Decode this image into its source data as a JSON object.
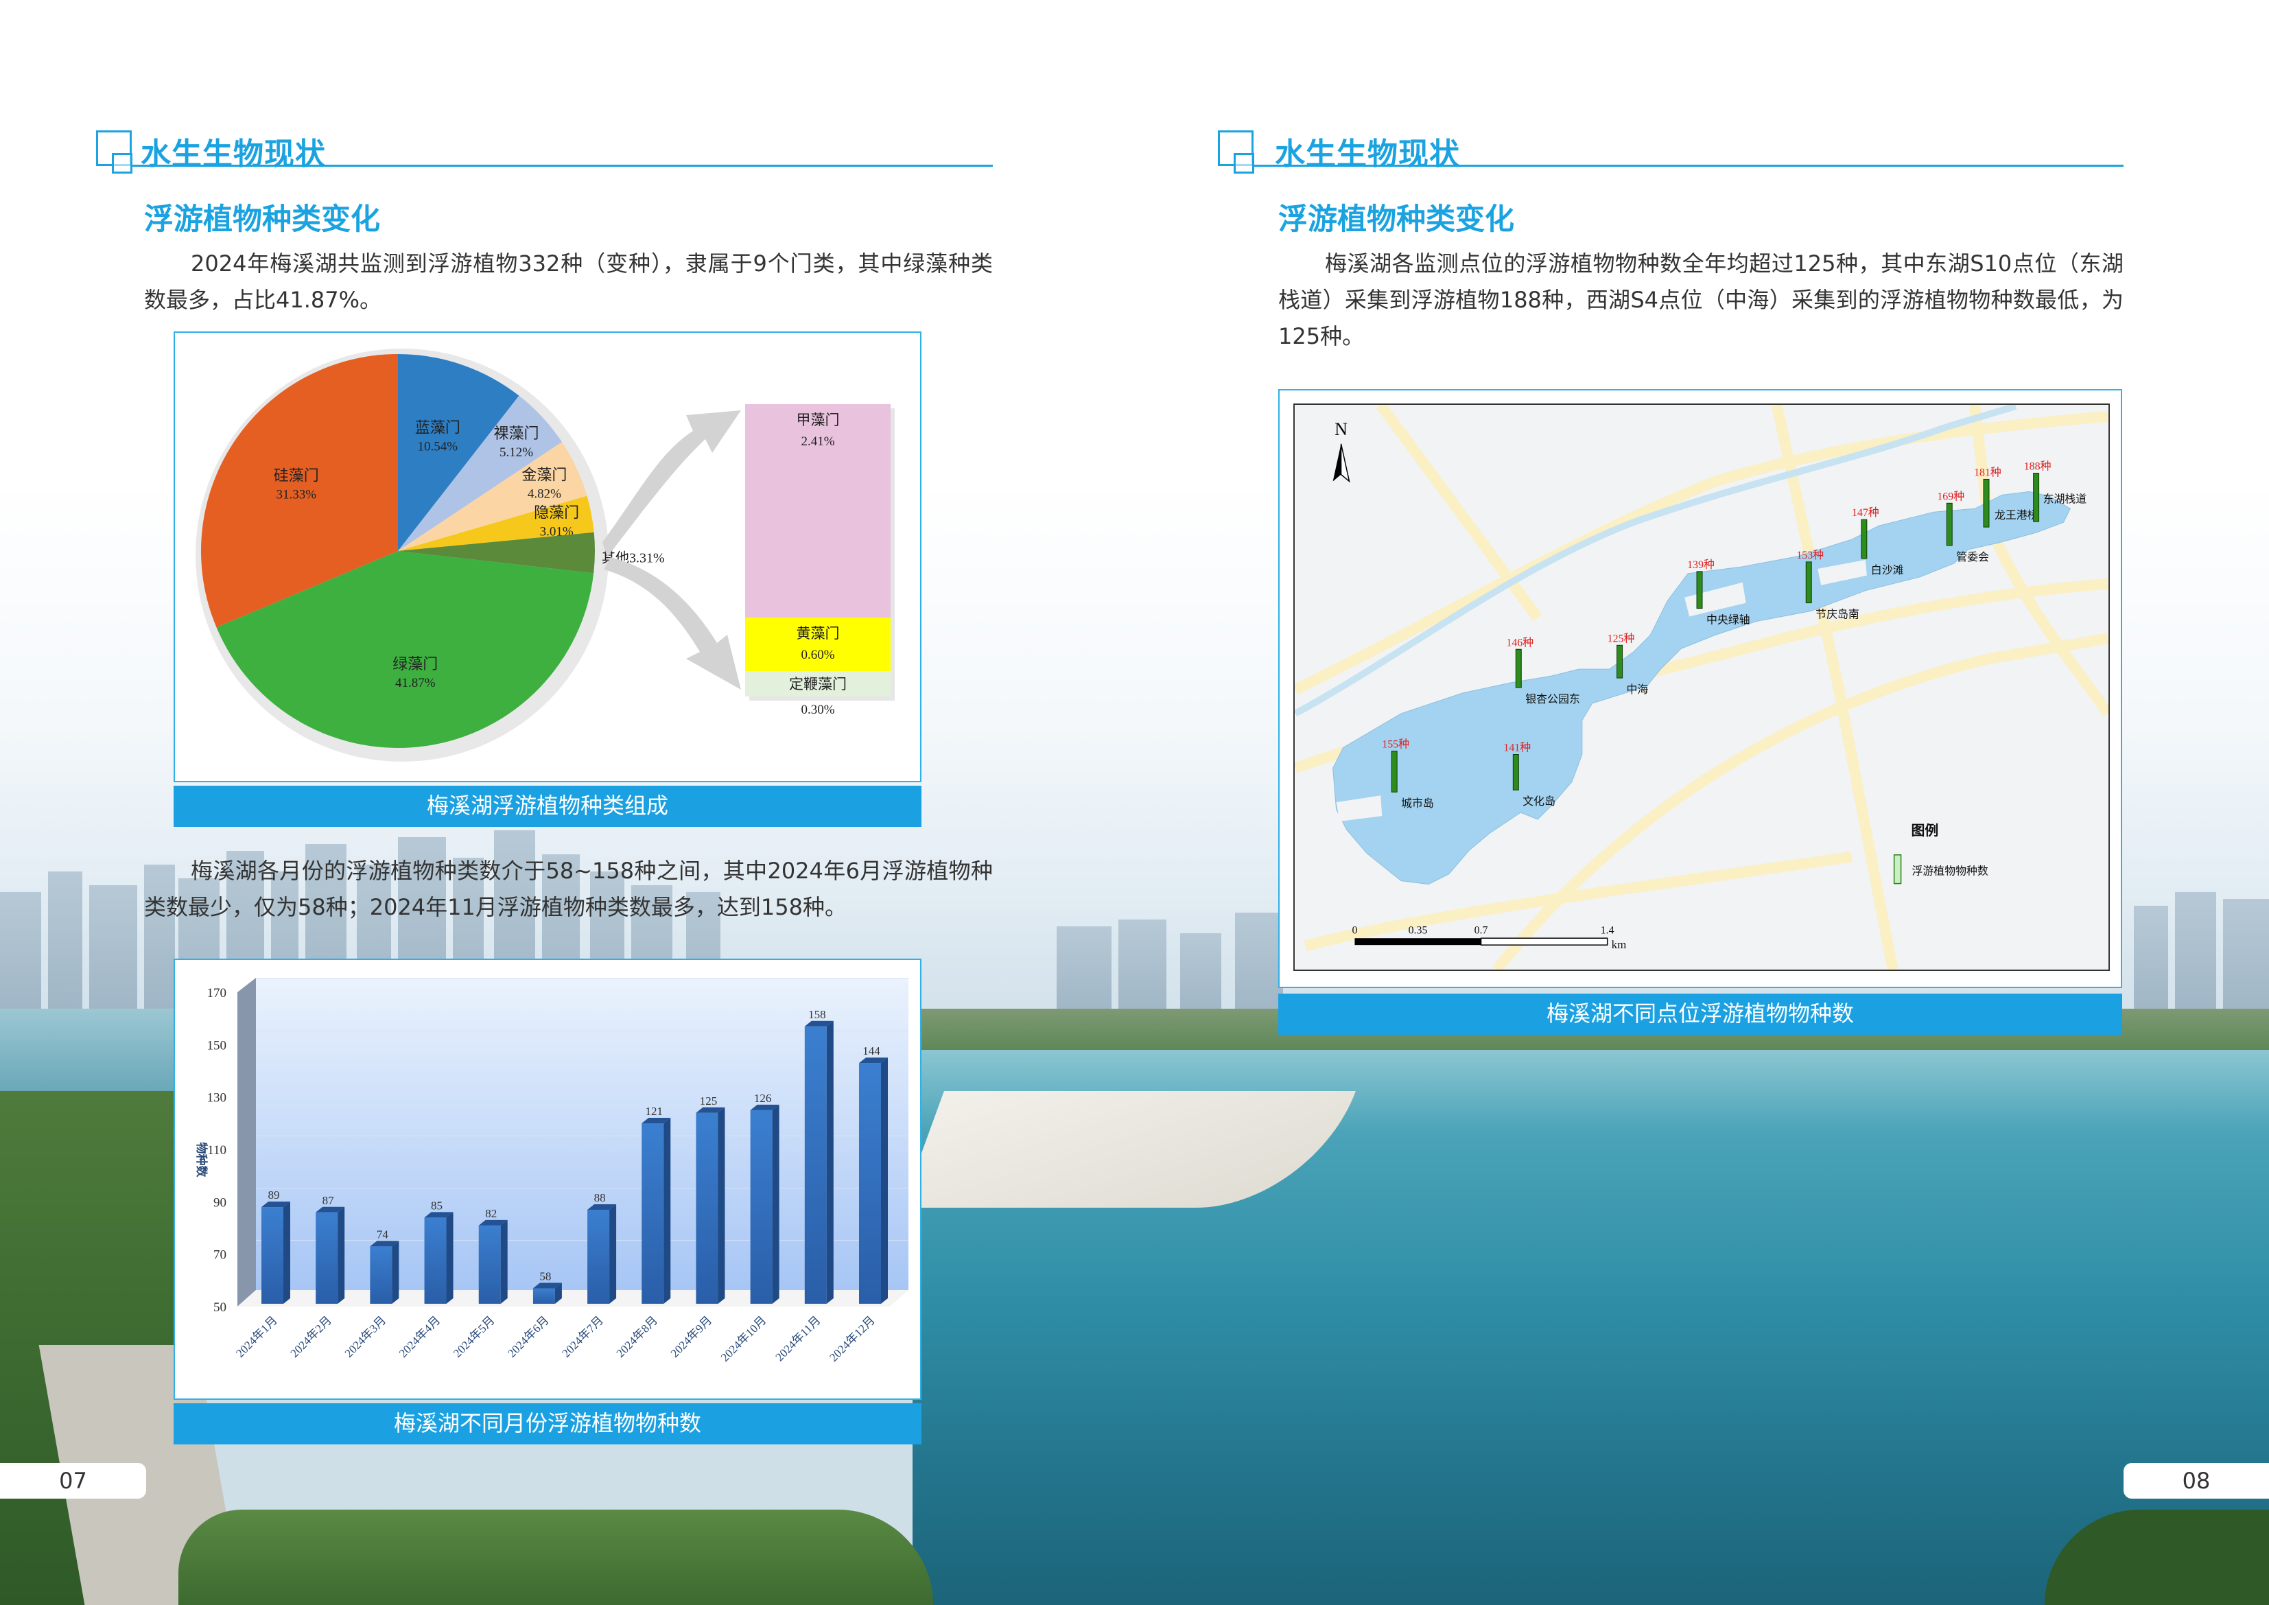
{
  "left_page": {
    "header_title": "水生生物现状",
    "subtitle": "浮游植物种类变化",
    "paragraph1": "2024年梅溪湖共监测到浮游植物332种（变种），隶属于9个门类，其中绿藻种类数最多，占比41.87%。",
    "pie_caption": "梅溪湖浮游植物种类组成",
    "paragraph2": "梅溪湖各月份的浮游植物种类数介于58~158种之间，其中2024年6月浮游植物种类数最少，仅为58种；2024年11月浮游植物种类数最多，达到158种。",
    "bar_caption": "梅溪湖不同月份浮游植物物种数",
    "page_number": "07"
  },
  "right_page": {
    "header_title": "水生生物现状",
    "subtitle": "浮游植物种类变化",
    "paragraph": "梅溪湖各监测点位的浮游植物物种数全年均超过125种，其中东湖S10点位（东湖栈道）采集到浮游植物188种，西湖S4点位（中海）采集到的浮游植物物种数最低，为125种。",
    "map_caption": "梅溪湖不同点位浮游植物物种数",
    "page_number": "08",
    "map": {
      "north_label": "N",
      "legend_title": "图例",
      "legend_item": "浮游植物物种数",
      "scale_ticks": [
        "0",
        "0.35",
        "0.7",
        "1.4"
      ],
      "scale_unit": "km",
      "unit": "种",
      "sites": [
        {
          "name": "城市岛",
          "value": 155
        },
        {
          "name": "文化岛",
          "value": 141
        },
        {
          "name": "银杏公园东",
          "value": 146
        },
        {
          "name": "中海",
          "value": 125
        },
        {
          "name": "中央绿轴",
          "value": 139
        },
        {
          "name": "节庆岛南",
          "value": 153
        },
        {
          "name": "白沙滩",
          "value": 147
        },
        {
          "name": "管委会",
          "value": 169
        },
        {
          "name": "龙王港桥",
          "value": 181
        },
        {
          "name": "东湖栈道",
          "value": 188
        }
      ],
      "colors": {
        "lake": "#a3d3f0",
        "bar": "#2e8b1e",
        "value_label": "#e02020"
      }
    }
  },
  "chart_data": [
    {
      "type": "pie",
      "title": "",
      "unit": "%",
      "slices": [
        {
          "label": "蓝藻门",
          "value": 10.54,
          "color": "#2e7ec4"
        },
        {
          "label": "裸藻门",
          "value": 5.12,
          "color": "#aec3e6"
        },
        {
          "label": "金藻门",
          "value": 4.82,
          "color": "#fbd5a4"
        },
        {
          "label": "隐藻门",
          "value": 3.01,
          "color": "#f6c81b"
        },
        {
          "label": "其他",
          "value": 3.31,
          "color": "#5a8a3a"
        },
        {
          "label": "绿藻门",
          "value": 41.87,
          "color": "#3db040"
        },
        {
          "label": "硅藻门",
          "value": 31.33,
          "color": "#e55f22"
        }
      ],
      "breakdown_of": "其他",
      "breakdown": [
        {
          "label": "甲藻门",
          "value": 2.41,
          "color": "#e9c2de"
        },
        {
          "label": "黄藻门",
          "value": 0.6,
          "color": "#ffff00"
        },
        {
          "label": "定鞭藻门",
          "value": 0.3,
          "color": "#e3f0dc"
        }
      ]
    },
    {
      "type": "bar",
      "title": "",
      "xlabel": "",
      "ylabel": "物种数",
      "categories": [
        "2024年1月",
        "2024年2月",
        "2024年3月",
        "2024年4月",
        "2024年5月",
        "2024年6月",
        "2024年7月",
        "2024年8月",
        "2024年9月",
        "2024年10月",
        "2024年11月",
        "2024年12月"
      ],
      "values": [
        89,
        87,
        74,
        85,
        82,
        58,
        88,
        121,
        125,
        126,
        158,
        144
      ],
      "ylim": [
        50,
        170
      ],
      "yticks": [
        50,
        70,
        90,
        110,
        130,
        150,
        170
      ],
      "grid": true,
      "color": "#2f6fbf"
    }
  ]
}
